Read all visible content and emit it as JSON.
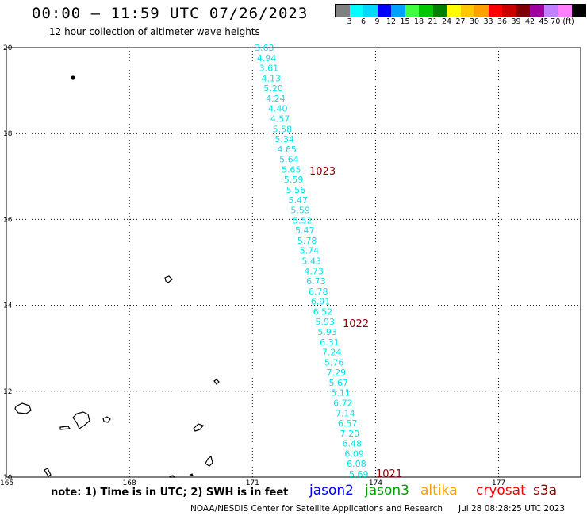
{
  "header": {
    "title": "00:00 – 11:59 UTC 07/26/2023",
    "subtitle": "12 hour collection of altimeter wave heights"
  },
  "colorbar": {
    "colors": [
      "#808080",
      "#00ffff",
      "#00d8ff",
      "#0000ff",
      "#00a0ff",
      "#40ff40",
      "#00c800",
      "#008000",
      "#ffff00",
      "#ffc800",
      "#ffa000",
      "#ff0000",
      "#c80000",
      "#800000",
      "#a000a0",
      "#c080ff",
      "#ff80ff",
      "#000000"
    ],
    "labels": [
      "3",
      "6",
      "9",
      "12",
      "15",
      "18",
      "21",
      "24",
      "27",
      "30",
      "33",
      "36",
      "39",
      "42",
      "45",
      "70 (ft)"
    ]
  },
  "map": {
    "lon_ticks": [
      "165",
      "168",
      "171",
      "174",
      "177"
    ],
    "lat_ticks": [
      "20",
      "18",
      "16",
      "14",
      "12",
      "10"
    ],
    "lon_range": [
      165,
      179
    ],
    "lat_range": [
      10,
      20
    ],
    "grid": "dotted"
  },
  "track": {
    "satellite": "jason3",
    "color": "#00e5ee",
    "values": [
      "3.63",
      "4.94",
      "3.61",
      "4.13",
      "5.20",
      "4.24",
      "4.40",
      "4.57",
      "5.58",
      "5.34",
      "4.65",
      "5.64",
      "5.65",
      "5.59",
      "5.56",
      "5.47",
      "5.59",
      "5.52",
      "5.47",
      "5.78",
      "5.74",
      "5.43",
      "4.73",
      "6.73",
      "6.78",
      "6.91",
      "6.52",
      "5.93",
      "5.93",
      "6.31",
      "7.24",
      "5.76",
      "7.29",
      "5.67",
      "5.11",
      "6.72",
      "7.14",
      "6.57",
      "7.20",
      "6.48",
      "6.09",
      "6.08",
      "5.69"
    ]
  },
  "pressure_labels": [
    {
      "text": "1023",
      "color": "#8b0000"
    },
    {
      "text": "1022",
      "color": "#8b0000"
    },
    {
      "text": "1021",
      "color": "#8b0000"
    }
  ],
  "footer": {
    "note": "note:  1) Time is in UTC;  2) SWH is in feet",
    "legend": [
      {
        "name": "jason2",
        "color": "#0000ff"
      },
      {
        "name": "jason3",
        "color": "#00a000"
      },
      {
        "name": "altika",
        "color": "#ffa000"
      },
      {
        "name": "cryosat",
        "color": "#ff0000"
      },
      {
        "name": "s3a",
        "color": "#8b0000"
      }
    ],
    "credit": "NOAA/NESDIS Center for Satellite Applications and Research",
    "timestamp": "Jul 28 08:28:25 UTC 2023"
  }
}
